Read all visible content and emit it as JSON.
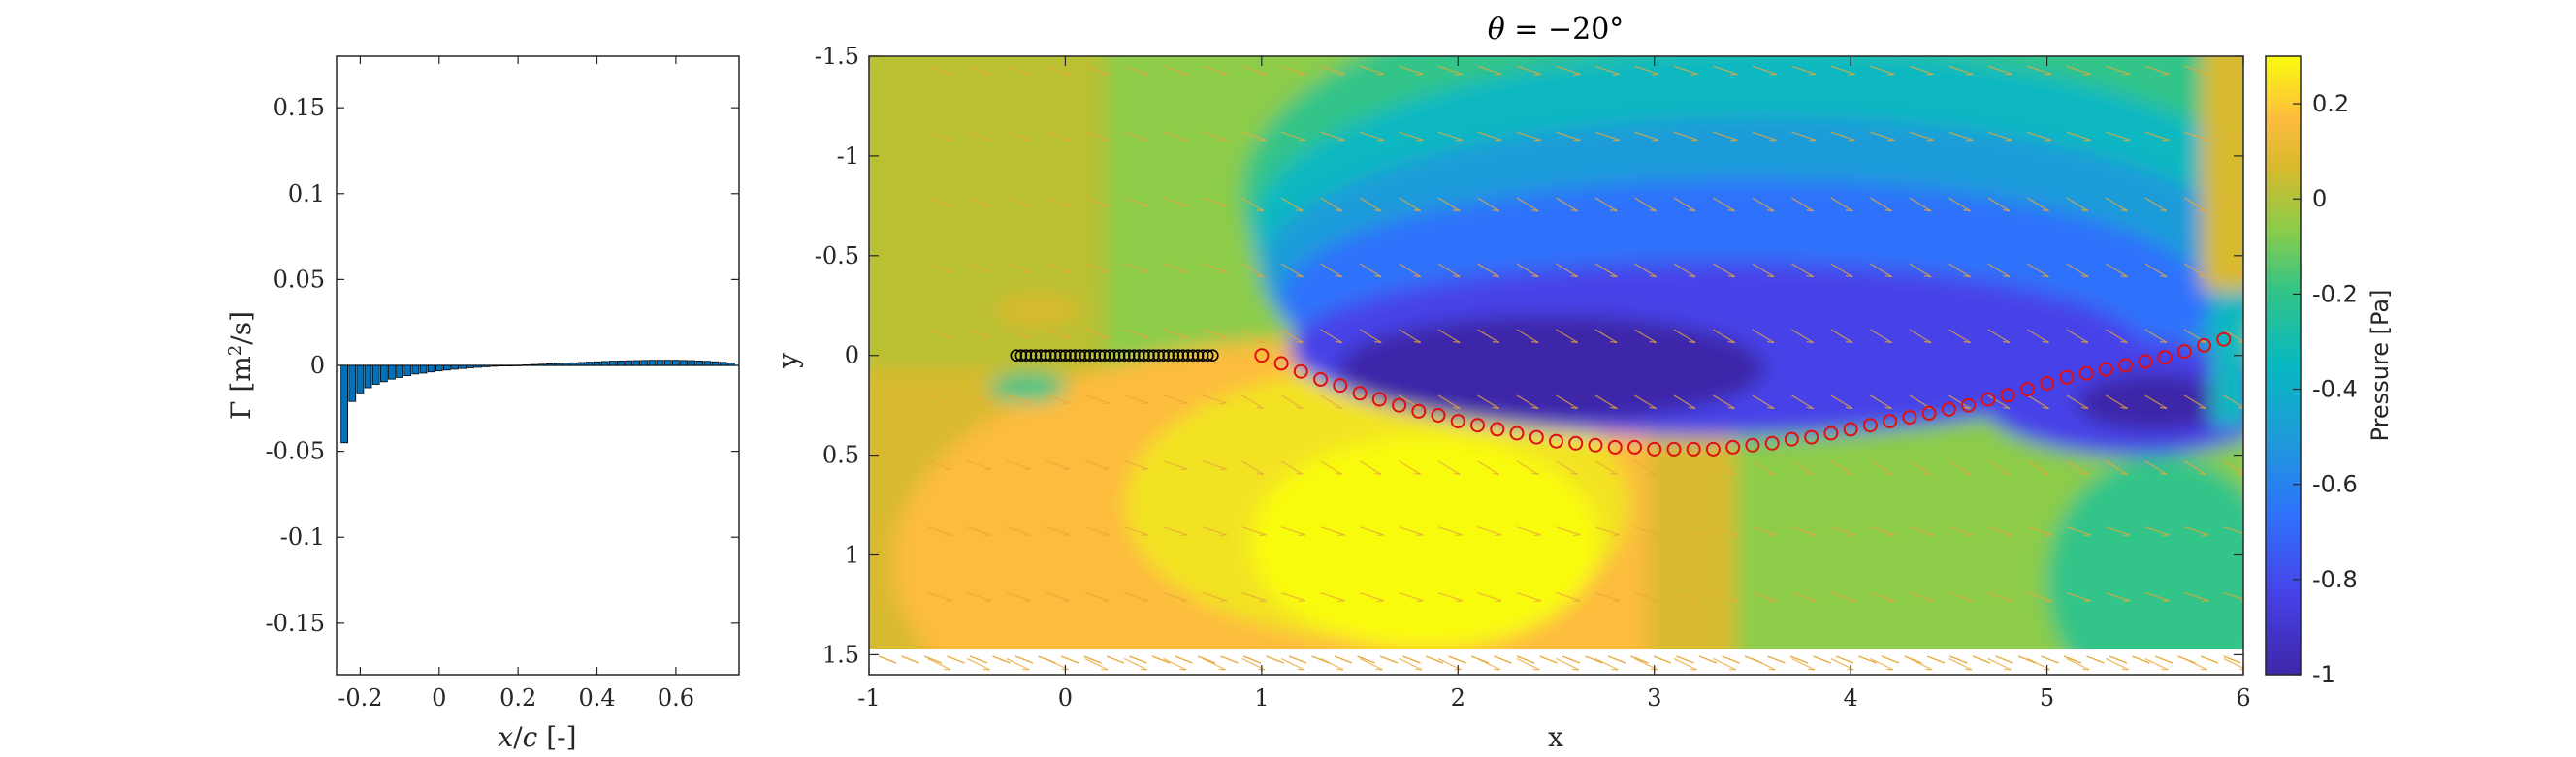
{
  "chart_data": [
    {
      "type": "bar",
      "title": "",
      "xlabel": "x/c [-]",
      "ylabel": "Γ [m²/s]",
      "xlim": [
        -0.26,
        0.76
      ],
      "ylim": [
        -0.18,
        0.18
      ],
      "xticks": [
        "-0.2",
        "0",
        "0.2",
        "0.4",
        "0.6"
      ],
      "xtick_values": [
        -0.2,
        0,
        0.2,
        0.4,
        0.6
      ],
      "yticks": [
        "0.15",
        "0.1",
        "0.05",
        "0",
        "-0.05",
        "-0.1",
        "-0.15"
      ],
      "ytick_values": [
        0.15,
        0.1,
        0.05,
        0,
        -0.05,
        -0.1,
        -0.15
      ],
      "bar_color": "#0072BD",
      "x": [
        -0.24,
        -0.22,
        -0.2,
        -0.18,
        -0.16,
        -0.14,
        -0.12,
        -0.1,
        -0.08,
        -0.06,
        -0.04,
        -0.02,
        0,
        0.02,
        0.04,
        0.06,
        0.08,
        0.1,
        0.12,
        0.14,
        0.16,
        0.18,
        0.2,
        0.22,
        0.24,
        0.26,
        0.28,
        0.3,
        0.32,
        0.34,
        0.36,
        0.38,
        0.4,
        0.42,
        0.44,
        0.46,
        0.48,
        0.5,
        0.52,
        0.54,
        0.56,
        0.58,
        0.6,
        0.62,
        0.64,
        0.66,
        0.68,
        0.7,
        0.72,
        0.74
      ],
      "values": [
        -0.045,
        -0.021,
        -0.016,
        -0.013,
        -0.011,
        -0.0095,
        -0.008,
        -0.007,
        -0.006,
        -0.005,
        -0.0045,
        -0.0038,
        -0.0032,
        -0.0027,
        -0.0022,
        -0.0018,
        -0.0014,
        -0.0011,
        -0.0008,
        -0.0005,
        -0.0003,
        -0.0001,
        0.0001,
        0.0003,
        0.0005,
        0.0007,
        0.0009,
        0.0011,
        0.0013,
        0.0015,
        0.0017,
        0.0019,
        0.0021,
        0.0023,
        0.0025,
        0.0026,
        0.0027,
        0.0028,
        0.0029,
        0.003,
        0.003,
        0.003,
        0.003,
        0.0029,
        0.0028,
        0.0026,
        0.0024,
        0.0021,
        0.0018,
        0.0014
      ]
    },
    {
      "type": "heatmap",
      "title": "θ = −20°",
      "xlabel": "x",
      "ylabel": "y",
      "xlim": [
        -1,
        6
      ],
      "ylim": [
        -1.5,
        1.6
      ],
      "y_reversed": true,
      "xticks": [
        "-1",
        "0",
        "1",
        "2",
        "3",
        "4",
        "5",
        "6"
      ],
      "xtick_values": [
        -1,
        0,
        1,
        2,
        3,
        4,
        5,
        6
      ],
      "yticks": [
        "-1.5",
        "-1",
        "-0.5",
        "0",
        "0.5",
        "1",
        "1.5"
      ],
      "ytick_values": [
        -1.5,
        -1,
        -0.5,
        0,
        0.5,
        1,
        1.5
      ],
      "colorbar": {
        "label": "Pressure [Pa]",
        "lim": [
          -1,
          0.3
        ],
        "ticks": [
          "0.2",
          "0",
          "-0.2",
          "-0.4",
          "-0.6",
          "-0.8",
          "-1"
        ],
        "tick_values": [
          0.2,
          0,
          -0.2,
          -0.4,
          -0.6,
          -0.8,
          -1
        ],
        "colormap": "parula"
      },
      "plate": {
        "x_start": -0.25,
        "x_end": 0.75,
        "y": 0,
        "marker": "black circles"
      },
      "wake_vortices": {
        "marker": "red circles",
        "x": [
          1,
          1.1,
          1.2,
          1.3,
          1.4,
          1.5,
          1.6,
          1.7,
          1.8,
          1.9,
          2,
          2.1,
          2.2,
          2.3,
          2.4,
          2.5,
          2.6,
          2.7,
          2.8,
          2.9,
          3,
          3.1,
          3.2,
          3.3,
          3.4,
          3.5,
          3.6,
          3.7,
          3.8,
          3.9,
          4,
          4.1,
          4.2,
          4.3,
          4.4,
          4.5,
          4.6,
          4.7,
          4.8,
          4.9,
          5,
          5.1,
          5.2,
          5.3,
          5.4,
          5.5,
          5.6,
          5.7,
          5.8,
          5.9
        ],
        "y": [
          0,
          0.04,
          0.08,
          0.12,
          0.15,
          0.19,
          0.22,
          0.25,
          0.28,
          0.3,
          0.33,
          0.35,
          0.37,
          0.39,
          0.41,
          0.43,
          0.44,
          0.45,
          0.46,
          0.46,
          0.47,
          0.47,
          0.47,
          0.47,
          0.46,
          0.45,
          0.44,
          0.42,
          0.41,
          0.39,
          0.37,
          0.35,
          0.33,
          0.31,
          0.29,
          0.27,
          0.25,
          0.22,
          0.2,
          0.17,
          0.14,
          0.11,
          0.09,
          0.07,
          0.05,
          0.03,
          0.01,
          -0.02,
          -0.05,
          -0.08
        ]
      }
    }
  ]
}
